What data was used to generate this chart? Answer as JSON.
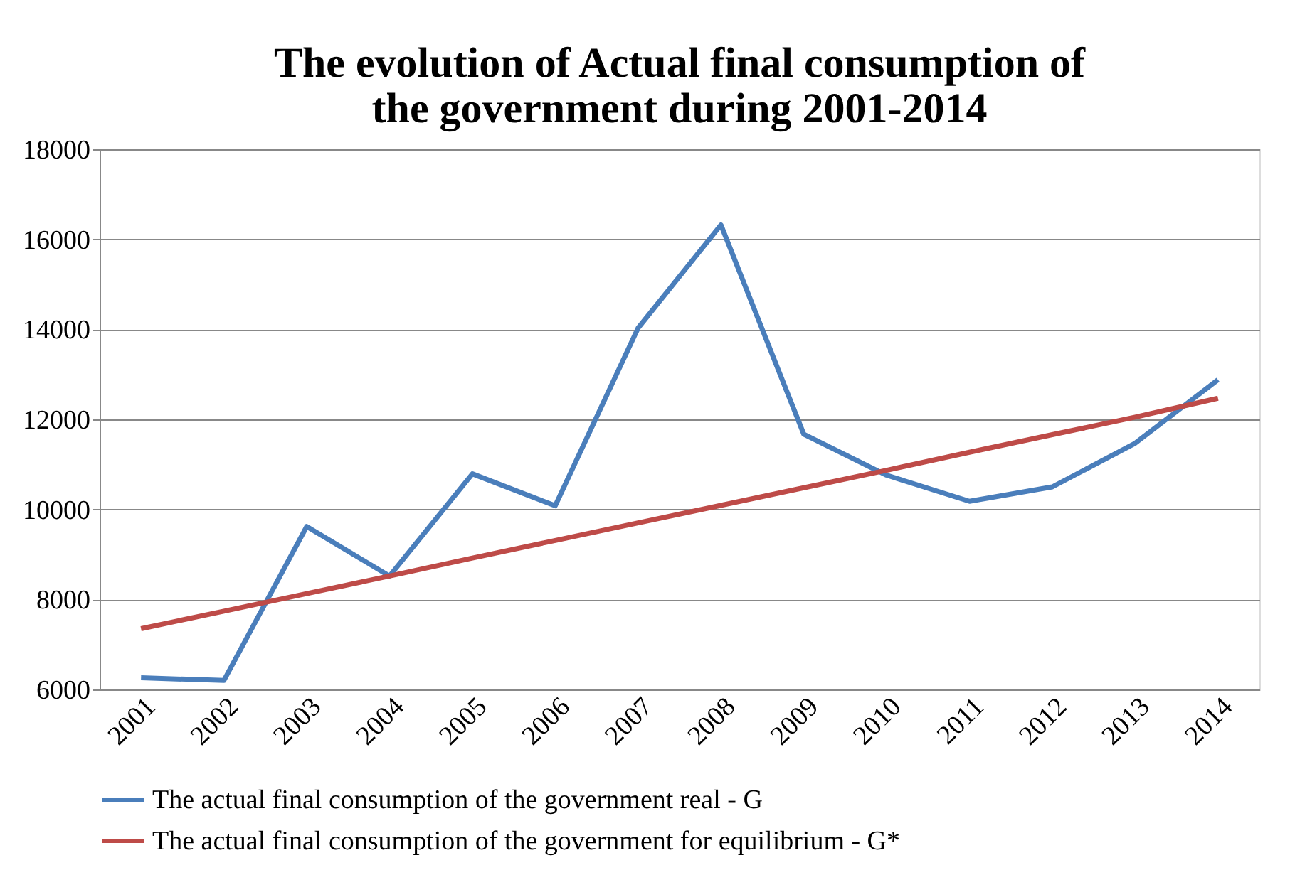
{
  "chart_data": {
    "type": "line",
    "title": [
      "The evolution of Actual final consumption of",
      "the government  during 2001-2014"
    ],
    "categories": [
      "2001",
      "2002",
      "2003",
      "2004",
      "2005",
      "2006",
      "2007",
      "2008",
      "2009",
      "2010",
      "2011",
      "2012",
      "2013",
      "2014"
    ],
    "series": [
      {
        "name": "The actual final consumption of the government real - G",
        "color": "#4a7ebb",
        "values": [
          6260,
          6200,
          9620,
          8520,
          10790,
          10080,
          14030,
          16320,
          11670,
          10760,
          10180,
          10500,
          11470,
          12880
        ]
      },
      {
        "name": "The actual final consumption of the government  for equilibrium - G*",
        "color": "#be4b48",
        "values": [
          7350,
          7740,
          8130,
          8520,
          8920,
          9310,
          9700,
          10090,
          10480,
          10870,
          11270,
          11660,
          12050,
          12470
        ]
      }
    ],
    "ylim": [
      6000,
      18000
    ],
    "yticks": [
      6000,
      8000,
      10000,
      12000,
      14000,
      16000,
      18000
    ],
    "grid": "y",
    "legend": "bottom",
    "marker": "none",
    "line_style": "solid"
  }
}
